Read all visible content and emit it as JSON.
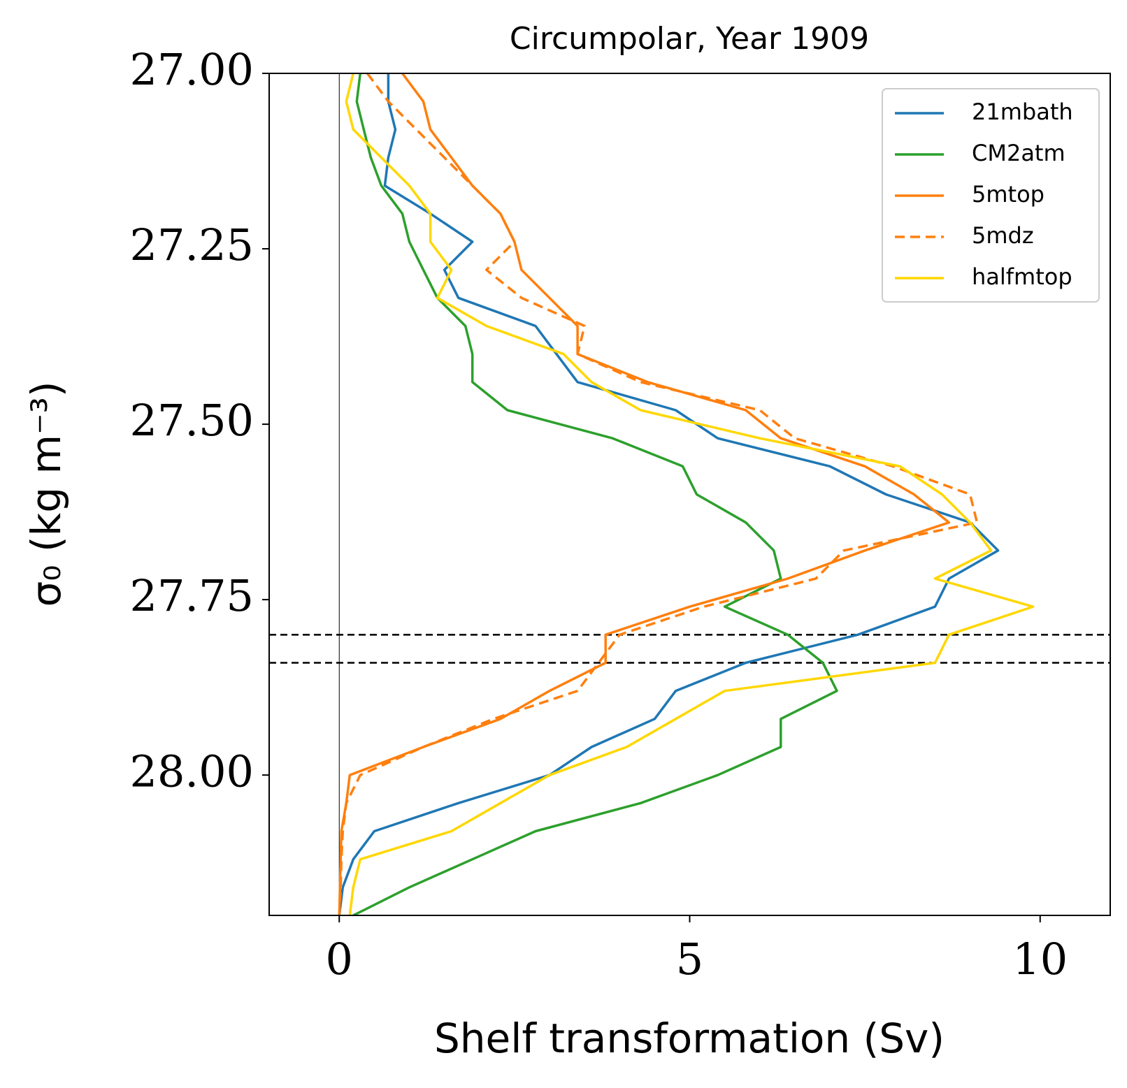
{
  "chart_data": {
    "type": "line",
    "title": "Circumpolar, Year 1909",
    "xlabel": "Shelf transformation (Sv)",
    "ylabel": "σ₀ (kg m⁻³)",
    "y": [
      27.0,
      27.04,
      27.08,
      27.12,
      27.16,
      27.2,
      27.24,
      27.28,
      27.32,
      27.36,
      27.4,
      27.44,
      27.48,
      27.52,
      27.56,
      27.6,
      27.64,
      27.68,
      27.72,
      27.76,
      27.8,
      27.84,
      27.88,
      27.92,
      27.96,
      28.0,
      28.04,
      28.08,
      28.12,
      28.16,
      28.2
    ],
    "series": [
      {
        "name": "21mbath",
        "color": "#1f77b4",
        "linestyle": "solid",
        "values": [
          0.7,
          0.7,
          0.8,
          0.7,
          0.65,
          1.3,
          1.9,
          1.5,
          1.7,
          2.8,
          3.1,
          3.4,
          4.8,
          5.4,
          7.0,
          7.8,
          9.0,
          9.4,
          8.7,
          8.5,
          7.4,
          5.8,
          4.8,
          4.5,
          3.6,
          3.0,
          1.7,
          0.5,
          0.2,
          0.05,
          0.0
        ]
      },
      {
        "name": "CM2atm",
        "color": "#2ca02c",
        "linestyle": "solid",
        "values": [
          0.3,
          0.25,
          0.35,
          0.45,
          0.6,
          0.9,
          1.0,
          1.2,
          1.4,
          1.8,
          1.9,
          1.9,
          2.4,
          3.9,
          4.9,
          5.1,
          5.8,
          6.2,
          6.3,
          5.5,
          6.4,
          6.9,
          7.1,
          6.3,
          6.3,
          5.4,
          4.3,
          2.8,
          1.9,
          1.0,
          0.2
        ]
      },
      {
        "name": "5mtop",
        "color": "#ff7f0e",
        "linestyle": "solid",
        "values": [
          0.9,
          1.2,
          1.3,
          1.6,
          1.9,
          2.3,
          2.5,
          2.6,
          3.0,
          3.4,
          3.4,
          4.4,
          5.8,
          6.3,
          7.5,
          8.2,
          8.7,
          7.5,
          6.4,
          5.0,
          3.8,
          3.8,
          3.0,
          2.3,
          1.2,
          0.15,
          0.1,
          0.03,
          0.02,
          0.01,
          0.0
        ]
      },
      {
        "name": "5mdz",
        "color": "#ff7f0e",
        "linestyle": "dashed",
        "values": [
          0.4,
          0.7,
          1.1,
          1.5,
          1.9,
          2.3,
          2.5,
          2.1,
          2.6,
          3.5,
          3.4,
          4.3,
          6.0,
          6.5,
          7.9,
          9.0,
          9.1,
          7.2,
          6.8,
          5.2,
          4.0,
          3.7,
          3.4,
          2.2,
          1.2,
          0.3,
          0.1,
          0.05,
          0.03,
          0.02,
          0.0
        ]
      },
      {
        "name": "halfmtop",
        "color": "#ffd700",
        "linestyle": "solid",
        "values": [
          0.2,
          0.1,
          0.2,
          0.6,
          1.0,
          1.3,
          1.3,
          1.6,
          1.4,
          2.1,
          3.2,
          3.6,
          4.3,
          6.0,
          8.0,
          8.6,
          9.0,
          9.3,
          8.5,
          9.9,
          8.7,
          8.5,
          5.5,
          4.8,
          4.1,
          3.0,
          2.3,
          1.6,
          0.3,
          0.2,
          0.15
        ]
      }
    ],
    "xlim": [
      -1,
      11
    ],
    "xticks": [
      0,
      5,
      10
    ],
    "ylim": [
      27.0,
      28.2
    ],
    "y_inverted": true,
    "yticks": [
      {
        "value": 27.0,
        "label": "27.00"
      },
      {
        "value": 27.25,
        "label": "27.25"
      },
      {
        "value": 27.5,
        "label": "27.50"
      },
      {
        "value": 27.75,
        "label": "27.75"
      },
      {
        "value": 28.0,
        "label": "28.00"
      }
    ],
    "hlines": [
      27.8,
      27.84
    ],
    "vlines": [
      0
    ],
    "legend": "upper right",
    "grid": false
  }
}
